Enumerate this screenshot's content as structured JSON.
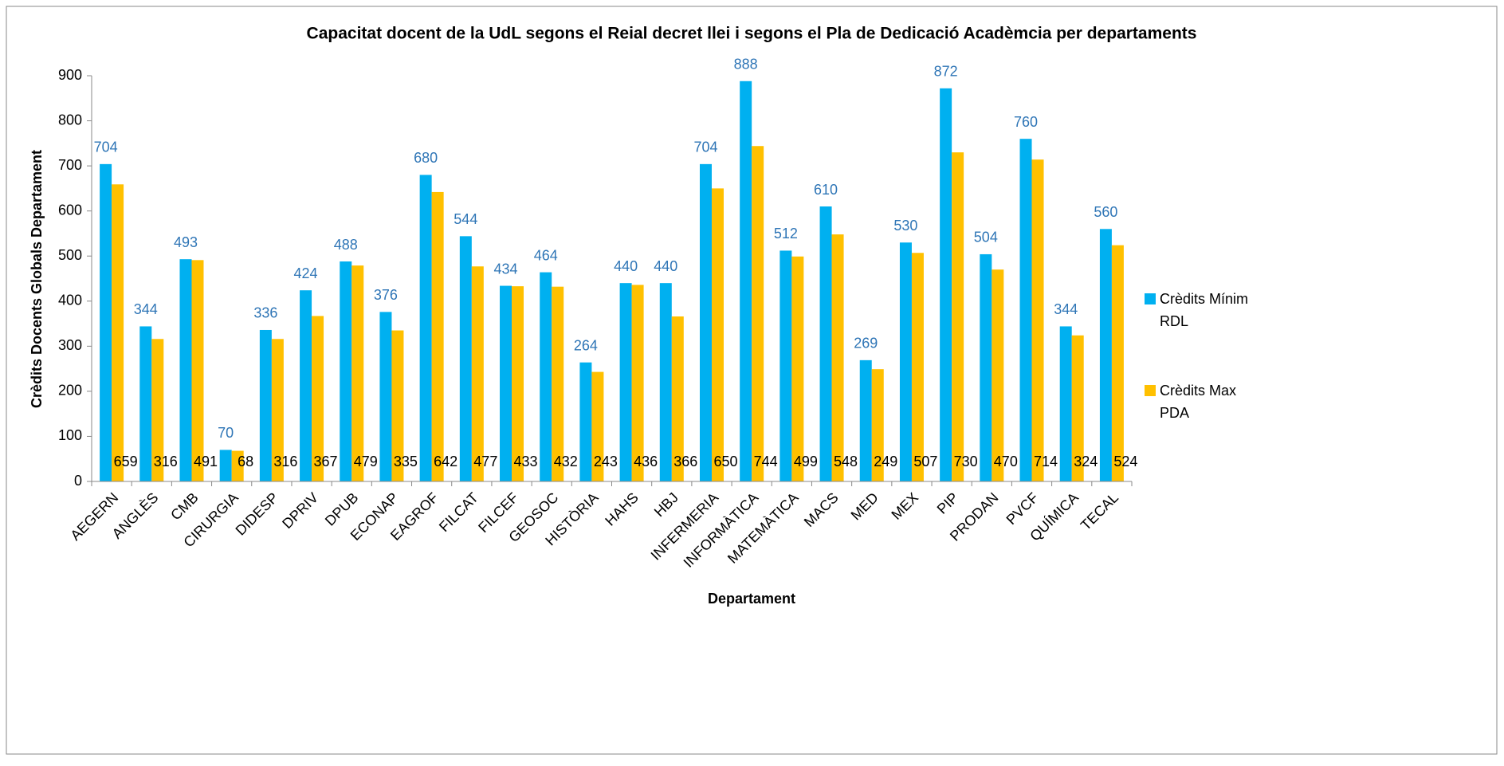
{
  "chart_data": {
    "type": "bar",
    "title": "Capacitat docent de la UdL segons el Reial decret llei i segons el Pla de Dedicació Acadèmcia per departaments",
    "x_label": "Departament",
    "y_label": "Crèdits Docents Globals Departament",
    "categories": [
      "AEGERN",
      "ANGLÈS",
      "CMB",
      "CIRURGIA",
      "DIDESP",
      "DPRIV",
      "DPUB",
      "ECONAP",
      "EAGROF",
      "FILCAT",
      "FILCEF",
      "GEOSOC",
      "HISTÒRIA",
      "HAHS",
      "HBJ",
      "INFERMERIA",
      "INFORMÀTICA",
      "MATEMÀTICA",
      "MACS",
      "MED",
      "MEX",
      "PIP",
      "PRODAN",
      "PVCF",
      "QUÍMICA",
      "TECAL"
    ],
    "series": [
      {
        "name": "Crèdits Mínim RDL",
        "color": "#00b0f0",
        "values": [
          704,
          344,
          493,
          70,
          336,
          424,
          488,
          376,
          680,
          544,
          434,
          464,
          264,
          440,
          440,
          704,
          888,
          512,
          610,
          269,
          530,
          872,
          504,
          760,
          344,
          560
        ]
      },
      {
        "name": "Crèdits Max PDA",
        "color": "#ffc000",
        "values": [
          659,
          316,
          491,
          68,
          316,
          367,
          479,
          335,
          642,
          477,
          433,
          432,
          243,
          436,
          366,
          650,
          744,
          499,
          548,
          249,
          507,
          730,
          470,
          714,
          324,
          524
        ]
      }
    ],
    "ylim": [
      0,
      900
    ],
    "yticks": [
      0,
      100,
      200,
      300,
      400,
      500,
      600,
      700,
      800,
      900
    ],
    "legend": "right"
  }
}
